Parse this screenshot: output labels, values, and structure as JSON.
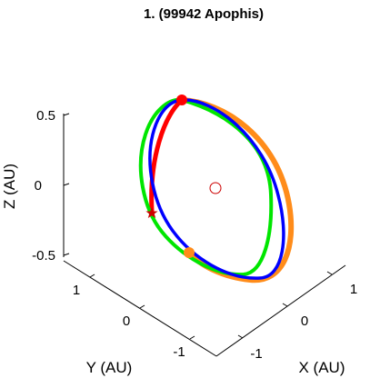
{
  "chart_data": {
    "type": "line",
    "title": "1. (99942 Apophis)",
    "xlabel": "X (AU)",
    "ylabel": "Y (AU)",
    "zlabel": "Z (AU)",
    "xticks": [
      "-1",
      "0",
      "1"
    ],
    "yticks": [
      "-1",
      "0",
      "1"
    ],
    "zticks": [
      "-0.5",
      "0",
      "0.5"
    ],
    "zlim": [
      -0.6,
      0.6
    ],
    "grid": false,
    "series": [
      {
        "color": "#ff8c1a",
        "style": "thick orbit"
      },
      {
        "color": "#ff0000",
        "style": "orbit arc"
      },
      {
        "color": "#00e600",
        "style": "orbit"
      },
      {
        "color": "#0000ff",
        "style": "orbit"
      }
    ],
    "markers": [
      {
        "shape": "filled-circle",
        "color": "#ff0000"
      },
      {
        "shape": "filled-circle",
        "color": "#ff8c1a"
      },
      {
        "shape": "open-circle",
        "color": "#cc0000"
      },
      {
        "shape": "star",
        "color": "#cc0000"
      }
    ]
  }
}
